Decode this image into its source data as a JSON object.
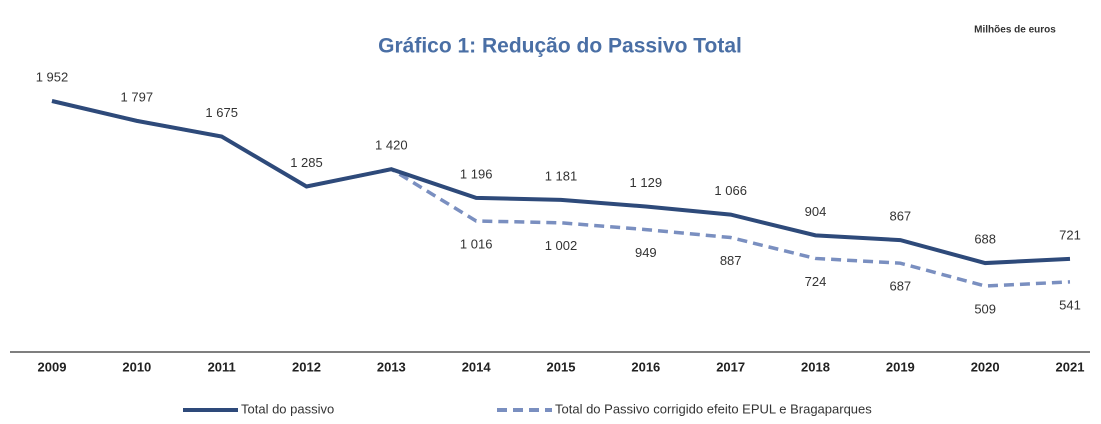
{
  "chart_data": {
    "type": "line",
    "title": "Gráfico 1: Redução do Passivo Total",
    "unit_label": "Milhões de euros",
    "categories": [
      "2009",
      "2010",
      "2011",
      "2012",
      "2013",
      "2014",
      "2015",
      "2016",
      "2017",
      "2018",
      "2019",
      "2020",
      "2021"
    ],
    "series": [
      {
        "name": "Total do passivo",
        "color": "#2e4a7a",
        "dashed": false,
        "values": [
          1952,
          1797,
          1675,
          1285,
          1420,
          1196,
          1181,
          1129,
          1066,
          904,
          867,
          688,
          721
        ],
        "value_labels": [
          "1 952",
          "1 797",
          "1 675",
          "1 285",
          "1 420",
          "1 196",
          "1 181",
          "1 129",
          "1 066",
          "904",
          "867",
          "688",
          "721"
        ]
      },
      {
        "name": "Total do Passivo corrigido efeito EPUL e Bragaparques",
        "color": "#7a8fc0",
        "dashed": true,
        "values": [
          1952,
          1797,
          1675,
          1285,
          1420,
          1016,
          1002,
          949,
          887,
          724,
          687,
          509,
          541
        ],
        "value_labels": [
          null,
          null,
          null,
          null,
          null,
          "1 016",
          "1 002",
          "949",
          "887",
          "724",
          "687",
          "509",
          "541"
        ]
      }
    ],
    "legend": "bottom"
  }
}
